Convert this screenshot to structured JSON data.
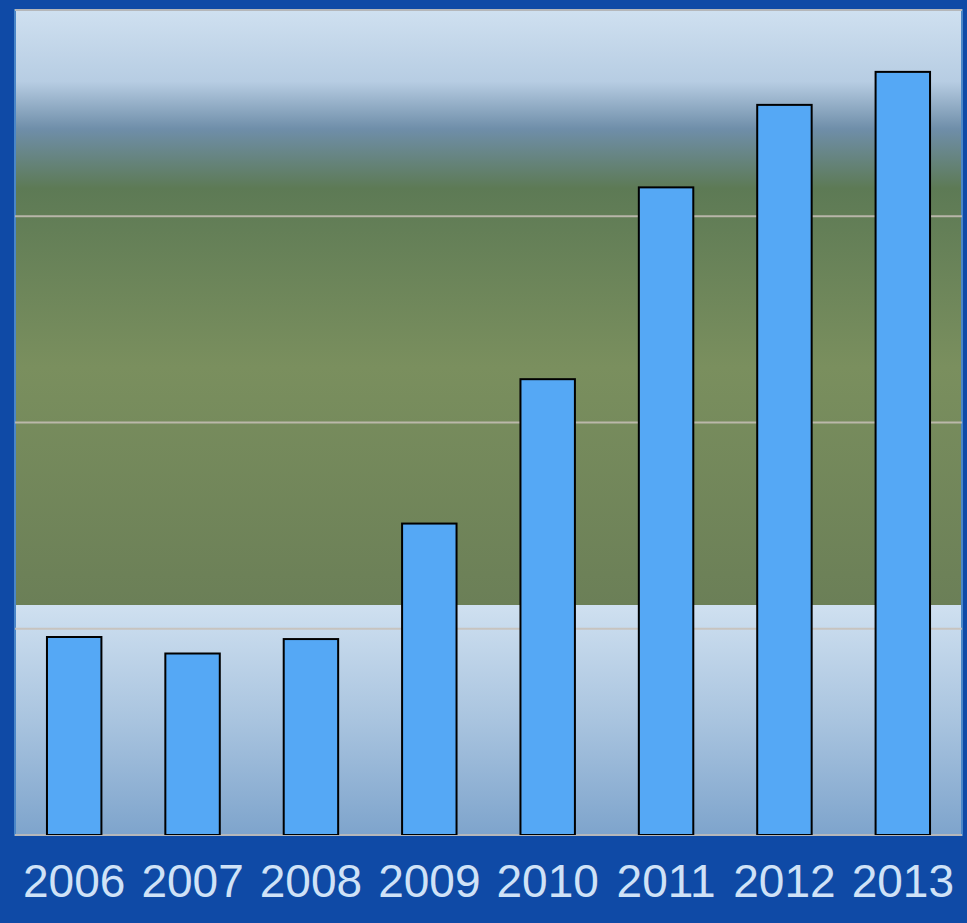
{
  "chart_data": {
    "type": "bar",
    "categories": [
      "2006",
      "2007",
      "2008",
      "2009",
      "2010",
      "2011",
      "2012",
      "2013"
    ],
    "values": [
      0.96,
      0.88,
      0.95,
      1.51,
      2.21,
      3.14,
      3.54,
      3.7
    ],
    "color": "#55a8f5",
    "ylim": [
      0,
      4
    ],
    "yticks": [
      0,
      1,
      2,
      3,
      4
    ],
    "grid": true,
    "tick_labels": "x"
  }
}
